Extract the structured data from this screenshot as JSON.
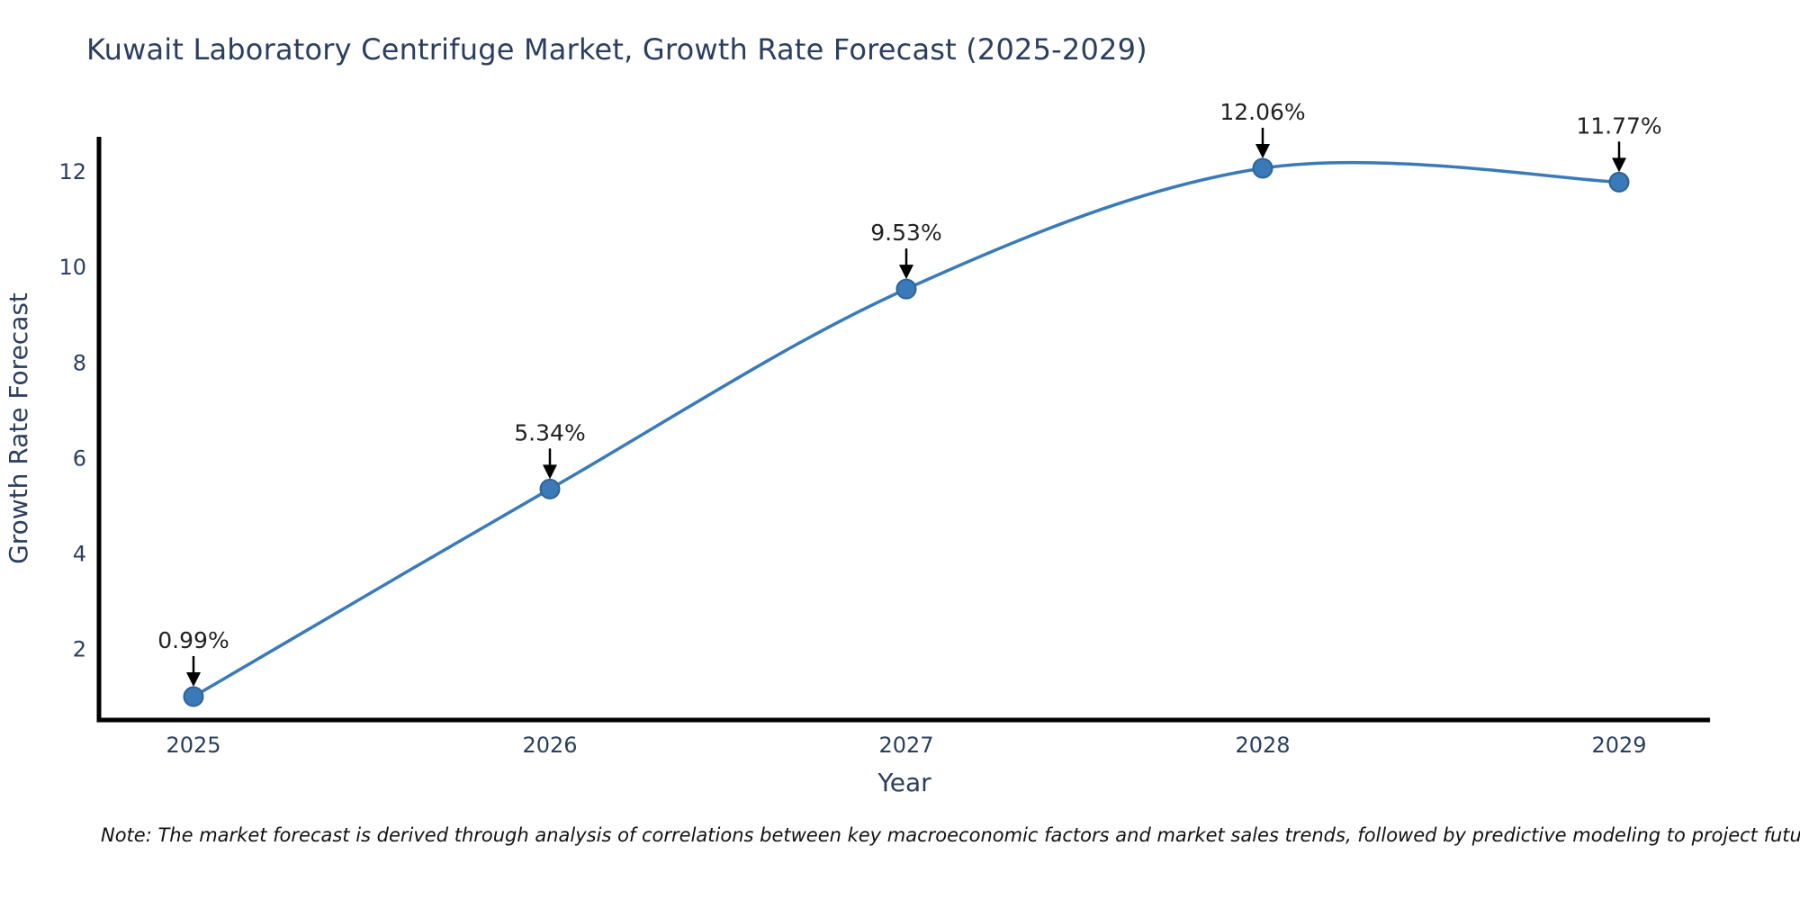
{
  "chart_data": {
    "type": "line",
    "title": "Kuwait Laboratory Centrifuge Market, Growth Rate Forecast (2025-2029)",
    "xlabel": "Year",
    "ylabel": "Growth Rate Forecast",
    "categories": [
      "2025",
      "2026",
      "2027",
      "2028",
      "2029"
    ],
    "series": [
      {
        "name": "Growth Rate Forecast",
        "values": [
          0.99,
          5.34,
          9.53,
          12.06,
          11.77
        ],
        "point_labels": [
          "0.99%",
          "5.34%",
          "9.53%",
          "12.06%",
          "11.77%"
        ]
      }
    ],
    "yticks": [
      2,
      4,
      6,
      8,
      10,
      12
    ],
    "ylim": [
      0.5,
      12.7
    ],
    "grid": false,
    "legend_position": "none",
    "line_style": "smooth-spline",
    "colors": {
      "line": "#3a7ab8",
      "marker_fill": "#3a7ab8",
      "marker_edge": "#2d6397",
      "axis": "#000000",
      "axis_text": "#2a3f5f",
      "annotation_text": "#222222",
      "annotation_arrow": "#000000"
    }
  },
  "note": "Note: The market forecast is derived through analysis of correlations between key macroeconomic factors and market sales trends, followed by predictive modeling to project future sales"
}
